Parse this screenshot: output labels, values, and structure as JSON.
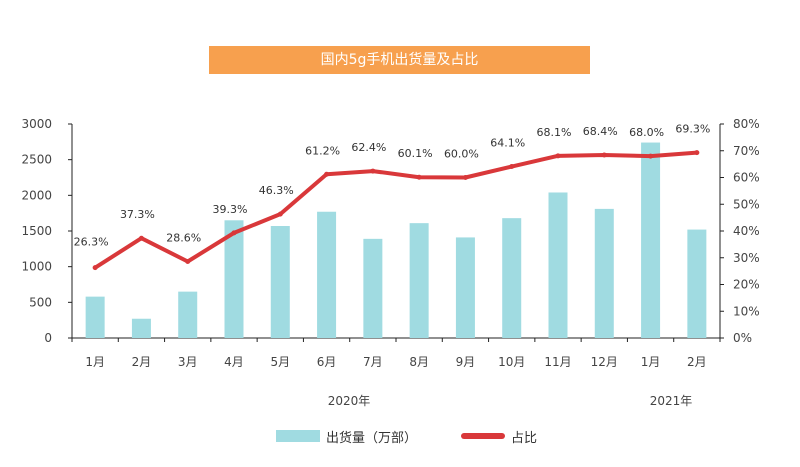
{
  "title": "国内5g手机出货量及占比",
  "chart_data": {
    "type": "bar+line",
    "categories": [
      "1月",
      "2月",
      "3月",
      "4月",
      "5月",
      "6月",
      "7月",
      "8月",
      "9月",
      "10月",
      "11月",
      "12月",
      "1月",
      "2月"
    ],
    "year_labels": [
      "2020年",
      "2021年"
    ],
    "series": [
      {
        "name": "出货量（万部）",
        "type": "bar",
        "axis": "left",
        "values": [
          580,
          270,
          650,
          1650,
          1570,
          1770,
          1390,
          1610,
          1410,
          1680,
          2040,
          1810,
          2740,
          1520
        ],
        "color": "#a0dbe1"
      },
      {
        "name": "占比",
        "type": "line",
        "axis": "right",
        "values": [
          26.3,
          37.3,
          28.6,
          39.3,
          46.3,
          61.2,
          62.4,
          60.1,
          60.0,
          64.1,
          68.1,
          68.4,
          68.0,
          69.3
        ],
        "labels": [
          "26.3%",
          "37.3%",
          "28.6%",
          "39.3%",
          "46.3%",
          "61.2%",
          "62.4%",
          "60.1%",
          "60.0%",
          "64.1%",
          "68.1%",
          "68.4%",
          "68.0%",
          "69.3%"
        ],
        "color": "#d9383a"
      }
    ],
    "y_left": {
      "range": [
        0,
        3000
      ],
      "ticks": [
        0,
        500,
        1000,
        1500,
        2000,
        2500,
        3000
      ],
      "tick_labels": [
        "0",
        "500",
        "1000",
        "1500",
        "2000",
        "2500",
        "3000"
      ]
    },
    "y_right": {
      "range": [
        0,
        80
      ],
      "ticks": [
        0,
        10,
        20,
        30,
        40,
        50,
        60,
        70,
        80
      ],
      "tick_labels": [
        "0%",
        "10%",
        "20%",
        "30%",
        "40%",
        "50%",
        "60%",
        "70%",
        "80%"
      ]
    },
    "legend": {
      "bar_label": "出货量（万部）",
      "line_label": "占比",
      "position": "bottom"
    }
  }
}
